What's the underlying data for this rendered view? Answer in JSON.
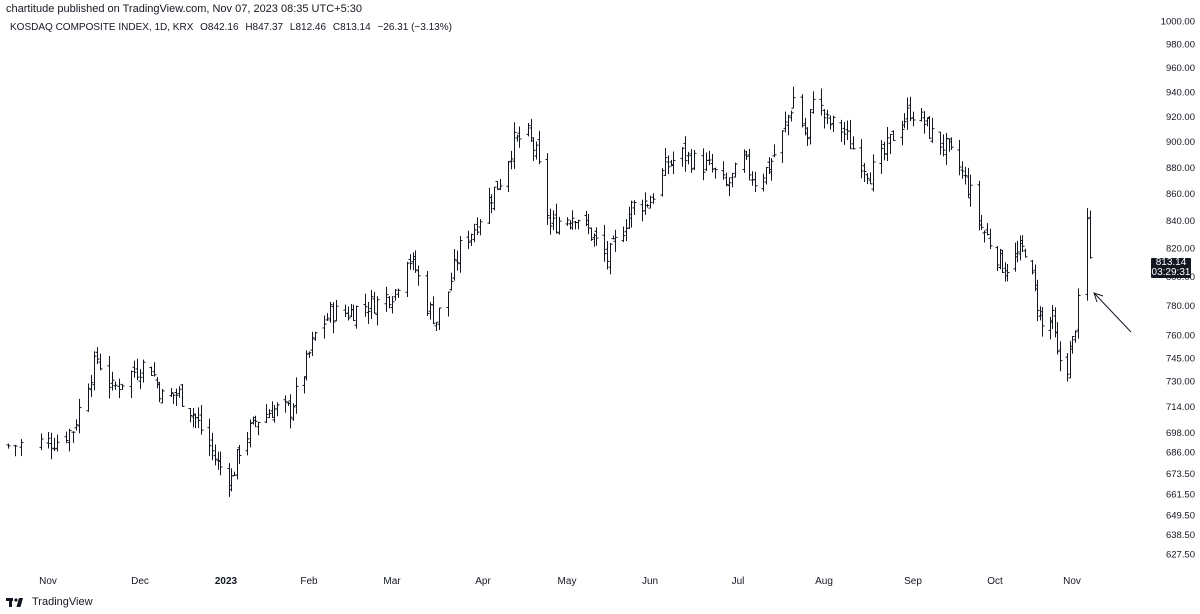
{
  "header": {
    "published_text": "chartitude published on TradingView.com, Nov 07, 2023 08:35 UTC+5:30",
    "symbol": "KOSDAQ COMPOSITE INDEX, 1D, KRX",
    "open": "O842.16",
    "high": "H847.37",
    "low": "L812.46",
    "close": "C813.14",
    "change": "−26.31 (−3.13%)"
  },
  "last_price": {
    "value": "813.14",
    "countdown": "03:29:31"
  },
  "footer": {
    "brand": "TradingView",
    "logo": "tradingview-logo-icon"
  },
  "colors": {
    "bars": "#131722",
    "axis_text": "#131722",
    "badge_bg": "#131722",
    "background": "#ffffff"
  },
  "chart_data": {
    "type": "ohlc",
    "scale": "log",
    "grid": false,
    "legend": "none",
    "ylim": [
      620,
      1000
    ],
    "y_ticks": [
      "1000.00",
      "980.00",
      "960.00",
      "940.00",
      "920.00",
      "900.00",
      "880.00",
      "860.00",
      "840.00",
      "820.00",
      "800.00",
      "780.00",
      "760.00",
      "745.00",
      "730.00",
      "714.00",
      "698.00",
      "686.00",
      "673.50",
      "661.50",
      "649.50",
      "638.50",
      "627.50"
    ],
    "x_ticks": [
      "Nov",
      "Dec",
      "2023",
      "Feb",
      "Mar",
      "Apr",
      "May",
      "Jun",
      "Jul",
      "Aug",
      "Sep",
      "Oct",
      "Nov"
    ],
    "close_path": [
      {
        "date": "2022-10-26",
        "close": 690
      },
      {
        "date": "2022-10-31",
        "close": 692
      },
      {
        "date": "2022-11-04",
        "close": 693
      },
      {
        "date": "2022-11-09",
        "close": 700
      },
      {
        "date": "2022-11-14",
        "close": 730
      },
      {
        "date": "2022-11-17",
        "close": 745
      },
      {
        "date": "2022-11-22",
        "close": 725
      },
      {
        "date": "2022-11-28",
        "close": 735
      },
      {
        "date": "2022-12-02",
        "close": 740
      },
      {
        "date": "2022-12-05",
        "close": 738
      },
      {
        "date": "2022-12-09",
        "close": 720
      },
      {
        "date": "2022-12-15",
        "close": 722
      },
      {
        "date": "2022-12-20",
        "close": 710
      },
      {
        "date": "2022-12-26",
        "close": 690
      },
      {
        "date": "2022-12-29",
        "close": 679
      },
      {
        "date": "2023-01-03",
        "close": 670
      },
      {
        "date": "2023-01-06",
        "close": 688
      },
      {
        "date": "2023-01-12",
        "close": 705
      },
      {
        "date": "2023-01-18",
        "close": 712
      },
      {
        "date": "2023-01-25",
        "close": 712
      },
      {
        "date": "2023-01-30",
        "close": 735
      },
      {
        "date": "2023-02-03",
        "close": 760
      },
      {
        "date": "2023-02-08",
        "close": 775
      },
      {
        "date": "2023-02-14",
        "close": 775
      },
      {
        "date": "2023-02-20",
        "close": 780
      },
      {
        "date": "2023-02-24",
        "close": 782
      },
      {
        "date": "2023-03-02",
        "close": 790
      },
      {
        "date": "2023-03-06",
        "close": 815
      },
      {
        "date": "2023-03-09",
        "close": 805
      },
      {
        "date": "2023-03-13",
        "close": 780
      },
      {
        "date": "2023-03-16",
        "close": 770
      },
      {
        "date": "2023-03-20",
        "close": 790
      },
      {
        "date": "2023-03-24",
        "close": 820
      },
      {
        "date": "2023-03-29",
        "close": 835
      },
      {
        "date": "2023-04-03",
        "close": 855
      },
      {
        "date": "2023-04-07",
        "close": 870
      },
      {
        "date": "2023-04-12",
        "close": 900
      },
      {
        "date": "2023-04-17",
        "close": 905
      },
      {
        "date": "2023-04-20",
        "close": 890
      },
      {
        "date": "2023-04-25",
        "close": 835
      },
      {
        "date": "2023-04-28",
        "close": 840
      },
      {
        "date": "2023-05-04",
        "close": 845
      },
      {
        "date": "2023-05-10",
        "close": 830
      },
      {
        "date": "2023-05-16",
        "close": 812
      },
      {
        "date": "2023-05-22",
        "close": 835
      },
      {
        "date": "2023-05-25",
        "close": 850
      },
      {
        "date": "2023-06-01",
        "close": 855
      },
      {
        "date": "2023-06-06",
        "close": 880
      },
      {
        "date": "2023-06-12",
        "close": 890
      },
      {
        "date": "2023-06-16",
        "close": 885
      },
      {
        "date": "2023-06-21",
        "close": 880
      },
      {
        "date": "2023-06-27",
        "close": 865
      },
      {
        "date": "2023-07-03",
        "close": 885
      },
      {
        "date": "2023-07-07",
        "close": 870
      },
      {
        "date": "2023-07-12",
        "close": 880
      },
      {
        "date": "2023-07-17",
        "close": 905
      },
      {
        "date": "2023-07-21",
        "close": 935
      },
      {
        "date": "2023-07-26",
        "close": 900
      },
      {
        "date": "2023-07-28",
        "close": 940
      },
      {
        "date": "2023-08-02",
        "close": 915
      },
      {
        "date": "2023-08-07",
        "close": 910
      },
      {
        "date": "2023-08-11",
        "close": 895
      },
      {
        "date": "2023-08-17",
        "close": 875
      },
      {
        "date": "2023-08-22",
        "close": 890
      },
      {
        "date": "2023-08-25",
        "close": 905
      },
      {
        "date": "2023-08-31",
        "close": 925
      },
      {
        "date": "2023-09-05",
        "close": 915
      },
      {
        "date": "2023-09-08",
        "close": 905
      },
      {
        "date": "2023-09-13",
        "close": 895
      },
      {
        "date": "2023-09-18",
        "close": 880
      },
      {
        "date": "2023-09-22",
        "close": 860
      },
      {
        "date": "2023-09-26",
        "close": 835
      },
      {
        "date": "2023-10-05",
        "close": 805
      },
      {
        "date": "2023-10-10",
        "close": 815
      },
      {
        "date": "2023-10-13",
        "close": 820
      },
      {
        "date": "2023-10-17",
        "close": 790
      },
      {
        "date": "2023-10-20",
        "close": 765
      },
      {
        "date": "2023-10-24",
        "close": 770
      },
      {
        "date": "2023-10-26",
        "close": 745
      },
      {
        "date": "2023-10-30",
        "close": 740
      },
      {
        "date": "2023-11-01",
        "close": 755
      },
      {
        "date": "2023-11-03",
        "close": 780
      },
      {
        "date": "2023-11-06",
        "close": 839
      },
      {
        "date": "2023-11-07",
        "close": 813.14
      }
    ],
    "last_bar": {
      "open": 842.16,
      "high": 847.37,
      "low": 812.46,
      "close": 813.14
    },
    "annotation": {
      "type": "arrow",
      "points_to": "2023-11-06 gap up"
    }
  }
}
